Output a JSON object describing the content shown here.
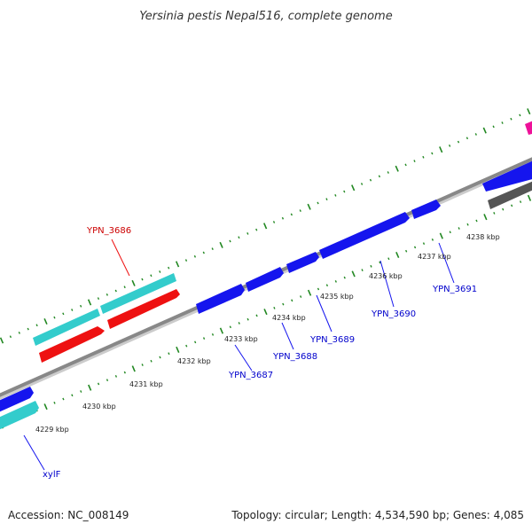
{
  "title": "Yersinia pestis Nepal516, complete genome",
  "footer": {
    "accession": "Accession: NC_008149",
    "summary": "Topology: circular; Length: 4,534,590 bp; Genes: 4,085"
  },
  "tick_labels": [
    "4229 kbp",
    "4230 kbp",
    "4231 kbp",
    "4232 kbp",
    "4233 kbp",
    "4234 kbp",
    "4235 kbp",
    "4236 kbp",
    "4237 kbp",
    "4238 kbp"
  ],
  "genes": [
    {
      "name": "YPN_3686",
      "color": "#cc0000"
    },
    {
      "name": "YPN_3687",
      "color": "#0000cc"
    },
    {
      "name": "YPN_3688",
      "color": "#0000cc"
    },
    {
      "name": "YPN_3689",
      "color": "#0000cc"
    },
    {
      "name": "YPN_3690",
      "color": "#0000cc"
    },
    {
      "name": "YPN_3691",
      "color": "#0000cc"
    },
    {
      "name": "xylF",
      "color": "#0000cc"
    }
  ],
  "colors": {
    "forward_cds": "#1515ee",
    "reverse_cds": "#ee1111",
    "rna_feature": "#33cccc",
    "backbone": "#888888",
    "tick": "#228822",
    "other_feature": "#555555",
    "pink_feature": "#ee1199"
  }
}
